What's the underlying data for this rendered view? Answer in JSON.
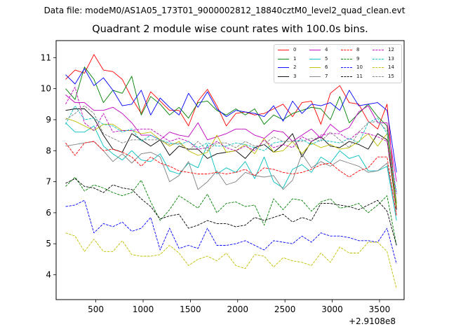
{
  "suptitle": "Data file: modeM0/AS1A05_173T01_9000002812_18840cztM0_level2_quad_clean.evt",
  "chart_data": {
    "type": "line",
    "title": "Quadrant 2 module wise count rates with 100.0s bins.",
    "xlabel": "",
    "ylabel": "",
    "x_offset_text": "+2.9108e8",
    "xlim": [
      80,
      3760
    ],
    "ylim": [
      3.2,
      11.55
    ],
    "xticks": [
      500,
      1000,
      1500,
      2000,
      2500,
      3000,
      3500
    ],
    "yticks": [
      4,
      5,
      6,
      7,
      8,
      9,
      10,
      11
    ],
    "grid": false,
    "legend_location": "upper-right",
    "x": [
      180,
      280,
      380,
      480,
      580,
      680,
      780,
      880,
      980,
      1080,
      1180,
      1280,
      1380,
      1480,
      1580,
      1680,
      1780,
      1880,
      1980,
      2080,
      2180,
      2280,
      2380,
      2480,
      2580,
      2680,
      2780,
      2880,
      2980,
      3080,
      3180,
      3280,
      3380,
      3480,
      3580,
      3680
    ],
    "series": [
      {
        "name": "0",
        "color": "#ff0000",
        "style": "solid",
        "values": [
          10.3,
          10.6,
          10.5,
          11.1,
          10.6,
          10.55,
          10.3,
          9.7,
          9.2,
          9.9,
          9.6,
          9.3,
          9.3,
          8.8,
          9.6,
          9.98,
          9.45,
          8.8,
          9.2,
          9.25,
          9.15,
          9.2,
          9.35,
          9.5,
          9.1,
          9.55,
          9.6,
          8.85,
          9.85,
          10.1,
          9.55,
          9.5,
          8.95,
          8.7,
          9.5,
          6.1
        ]
      },
      {
        "name": "1",
        "color": "#008000",
        "style": "solid",
        "values": [
          10.0,
          9.65,
          10.7,
          10.3,
          9.55,
          9.95,
          9.85,
          10.4,
          9.15,
          9.75,
          9.5,
          9.15,
          9.4,
          9.05,
          9.55,
          9.6,
          9.3,
          9.15,
          9.35,
          9.15,
          9.35,
          8.85,
          9.15,
          9.0,
          9.2,
          9.3,
          9.4,
          9.35,
          9.0,
          9.75,
          8.9,
          9.2,
          9.5,
          9.1,
          8.8,
          6.3
        ]
      },
      {
        "name": "2",
        "color": "#0000ff",
        "style": "solid",
        "values": [
          10.45,
          10.15,
          10.65,
          10.1,
          10.35,
          9.95,
          9.45,
          9.5,
          9.95,
          9.15,
          9.7,
          9.4,
          9.15,
          9.85,
          9.4,
          9.9,
          9.35,
          9.1,
          9.3,
          9.25,
          9.2,
          9.1,
          9.45,
          8.95,
          9.6,
          9.2,
          9.5,
          9.45,
          9.55,
          9.3,
          9.95,
          9.45,
          9.5,
          9.55,
          9.3,
          7.3
        ]
      },
      {
        "name": "3",
        "color": "#000000",
        "style": "solid",
        "values": [
          9.3,
          9.35,
          9.35,
          9.05,
          8.5,
          8.05,
          7.95,
          8.55,
          8.35,
          8.15,
          8.35,
          7.85,
          8.15,
          8.05,
          8.05,
          7.75,
          7.9,
          7.95,
          8.0,
          7.75,
          8.1,
          8.2,
          7.95,
          8.2,
          8.55,
          7.8,
          8.3,
          8.45,
          8.15,
          8.1,
          8.3,
          8.2,
          8.05,
          8.55,
          8.35,
          6.1
        ]
      },
      {
        "name": "4",
        "color": "#bf00bf",
        "style": "solid",
        "values": [
          9.8,
          9.55,
          9.55,
          9.3,
          9.3,
          9.4,
          9.2,
          8.9,
          8.5,
          8.5,
          8.35,
          8.6,
          8.5,
          8.45,
          8.9,
          8.35,
          8.45,
          8.55,
          8.7,
          8.7,
          8.5,
          8.4,
          8.65,
          8.6,
          8.3,
          8.5,
          8.7,
          8.4,
          8.85,
          8.6,
          8.75,
          9.25,
          9.45,
          8.9,
          8.9,
          7.0
        ]
      },
      {
        "name": "5",
        "color": "#00bfbf",
        "style": "solid",
        "values": [
          8.9,
          8.6,
          8.6,
          8.8,
          8.15,
          7.9,
          7.7,
          8.0,
          7.7,
          7.65,
          7.9,
          7.35,
          7.25,
          7.6,
          7.45,
          8.2,
          7.25,
          7.45,
          7.3,
          7.65,
          7.1,
          7.8,
          7.0,
          6.8,
          7.4,
          7.55,
          7.3,
          7.8,
          7.6,
          8.0,
          7.75,
          7.85,
          7.35,
          7.35,
          7.5,
          5.75
        ]
      },
      {
        "name": "6",
        "color": "#bfbf00",
        "style": "solid",
        "values": [
          9.05,
          8.95,
          8.8,
          8.65,
          8.85,
          8.85,
          8.65,
          8.65,
          8.55,
          8.6,
          8.35,
          8.15,
          8.3,
          8.0,
          7.85,
          7.95,
          8.5,
          7.95,
          8.0,
          8.2,
          7.9,
          8.4,
          7.95,
          8.0,
          8.3,
          7.9,
          8.25,
          8.1,
          8.2,
          8.05,
          8.1,
          8.3,
          8.55,
          8.15,
          8.55,
          6.2
        ]
      },
      {
        "name": "7",
        "color": "#808080",
        "style": "solid",
        "values": [
          8.15,
          8.2,
          8.25,
          8.3,
          8.0,
          7.65,
          7.9,
          7.6,
          7.9,
          7.95,
          7.8,
          7.0,
          7.2,
          7.65,
          6.75,
          7.0,
          7.35,
          6.9,
          7.0,
          7.3,
          7.2,
          7.15,
          7.2,
          6.75,
          7.05,
          7.9,
          7.45,
          7.65,
          7.5,
          7.7,
          7.6,
          7.5,
          7.3,
          7.35,
          7.6,
          5.95
        ]
      },
      {
        "name": "8",
        "color": "#ff0000",
        "style": "dashed",
        "values": [
          8.25,
          7.85,
          8.25,
          8.3,
          8.0,
          8.05,
          7.95,
          7.8,
          7.5,
          7.8,
          7.6,
          7.5,
          7.35,
          7.3,
          7.25,
          7.25,
          7.3,
          7.25,
          7.3,
          7.4,
          7.2,
          7.45,
          7.4,
          7.3,
          7.25,
          7.3,
          7.4,
          7.55,
          7.6,
          7.35,
          7.15,
          7.35,
          7.45,
          7.8,
          7.8,
          5.9
        ]
      },
      {
        "name": "9",
        "color": "#008000",
        "style": "dashed",
        "values": [
          6.85,
          7.15,
          6.7,
          6.9,
          6.8,
          6.65,
          6.55,
          6.65,
          7.05,
          6.35,
          5.75,
          6.1,
          6.55,
          6.35,
          6.15,
          6.6,
          6.0,
          6.3,
          6.35,
          6.2,
          6.25,
          5.6,
          6.45,
          6.1,
          6.45,
          6.4,
          6.05,
          6.35,
          6.45,
          6.15,
          6.2,
          6.3,
          6.0,
          6.25,
          6.55,
          4.95
        ]
      },
      {
        "name": "10",
        "color": "#0000ff",
        "style": "dashed",
        "values": [
          6.2,
          6.25,
          6.4,
          5.35,
          5.65,
          5.55,
          5.7,
          5.4,
          5.5,
          5.85,
          4.8,
          5.5,
          4.85,
          4.95,
          4.85,
          5.5,
          4.95,
          4.95,
          5.0,
          5.1,
          4.95,
          4.8,
          5.1,
          5.05,
          5.0,
          5.25,
          5.05,
          5.35,
          5.25,
          5.25,
          5.2,
          5.1,
          5.1,
          5.05,
          5.5,
          4.35
        ]
      },
      {
        "name": "11",
        "color": "#000000",
        "style": "dashed",
        "values": [
          6.95,
          7.1,
          6.85,
          6.8,
          6.65,
          6.9,
          6.8,
          6.75,
          6.45,
          6.2,
          5.8,
          5.9,
          5.95,
          5.5,
          5.6,
          5.75,
          5.65,
          5.65,
          5.55,
          5.6,
          5.85,
          5.75,
          5.85,
          5.95,
          5.7,
          5.85,
          5.75,
          6.3,
          6.3,
          6.25,
          6.2,
          6.1,
          6.25,
          6.4,
          6.05,
          4.95
        ]
      },
      {
        "name": "12",
        "color": "#bf00bf",
        "style": "dashed",
        "values": [
          9.5,
          10.05,
          8.9,
          8.65,
          9.2,
          8.6,
          8.65,
          8.65,
          8.7,
          8.7,
          8.5,
          8.3,
          8.4,
          8.3,
          8.05,
          8.1,
          8.3,
          8.1,
          8.0,
          8.15,
          8.0,
          8.35,
          8.1,
          8.2,
          8.1,
          8.45,
          8.3,
          8.5,
          8.55,
          8.55,
          8.35,
          8.6,
          8.55,
          8.45,
          8.3,
          6.6
        ]
      },
      {
        "name": "13",
        "color": "#00bfbf",
        "style": "dashed",
        "values": [
          8.85,
          9.45,
          9.0,
          9.05,
          8.85,
          8.8,
          8.6,
          8.7,
          8.3,
          8.5,
          8.35,
          8.25,
          8.2,
          8.3,
          8.1,
          8.25,
          8.15,
          8.15,
          8.25,
          8.2,
          8.1,
          8.0,
          8.25,
          8.3,
          8.3,
          8.35,
          8.2,
          8.35,
          8.3,
          8.25,
          8.4,
          8.25,
          8.9,
          9.05,
          8.55,
          6.65
        ]
      },
      {
        "name": "14",
        "color": "#bfbf00",
        "style": "dashed",
        "values": [
          5.35,
          5.25,
          4.75,
          5.15,
          4.75,
          4.75,
          5.1,
          4.65,
          4.6,
          4.6,
          4.65,
          4.95,
          4.7,
          4.3,
          4.5,
          4.6,
          4.45,
          4.7,
          4.3,
          4.2,
          4.65,
          4.6,
          4.25,
          4.55,
          4.45,
          4.4,
          4.3,
          4.7,
          4.4,
          4.9,
          4.7,
          4.7,
          5.05,
          5.05,
          4.75,
          3.55
        ]
      },
      {
        "name": "15",
        "color": "#808080",
        "style": "dashed",
        "values": [
          9.0,
          9.2,
          9.45,
          9.2,
          8.55,
          8.4,
          8.25,
          8.35,
          8.35,
          8.35,
          8.35,
          8.2,
          8.25,
          8.0,
          8.3,
          8.0,
          8.25,
          8.25,
          8.1,
          8.3,
          8.15,
          8.2,
          8.45,
          8.3,
          8.3,
          8.3,
          8.4,
          8.3,
          8.6,
          8.35,
          8.1,
          8.6,
          8.9,
          8.95,
          8.65,
          6.35
        ]
      }
    ]
  }
}
